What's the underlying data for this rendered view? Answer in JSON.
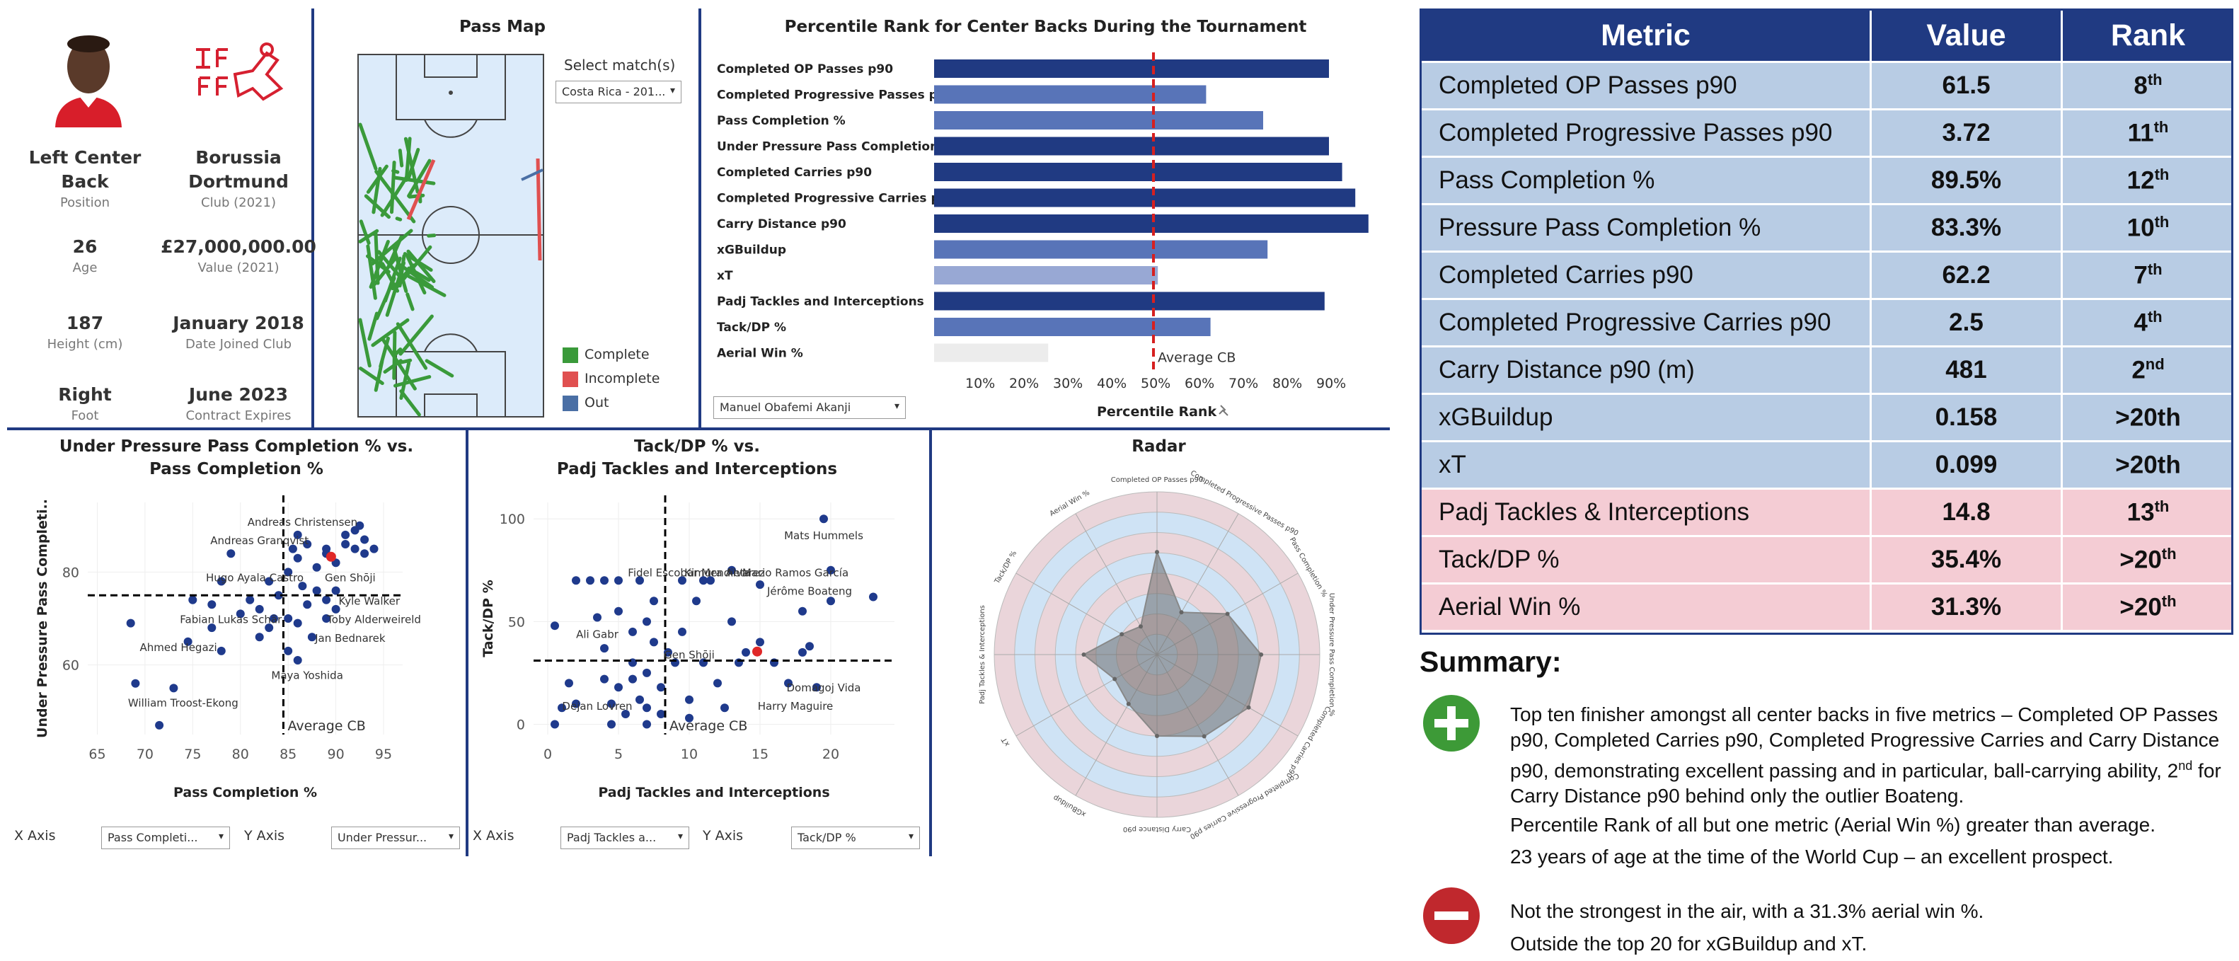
{
  "profile": {
    "position": {
      "value": "Left Center Back",
      "label": "Position"
    },
    "club": {
      "value": "Borussia Dortmund",
      "label": "Club (2021)"
    },
    "age": {
      "value": "26",
      "label": "Age"
    },
    "value": {
      "value": "£27,000,000.00",
      "label": "Value (2021)"
    },
    "height": {
      "value": "187",
      "label": "Height (cm)"
    },
    "joined": {
      "value": "January 2018",
      "label": "Date Joined Club"
    },
    "foot": {
      "value": "Right",
      "label": "Foot"
    },
    "contract": {
      "value": "June 2023",
      "label": "Contract Expires"
    }
  },
  "pass_map": {
    "title": "Pass Map",
    "select_label": "Select match(s)",
    "select_value": "Costa Rica - 201...",
    "legend": [
      {
        "label": "Complete",
        "color": "#3a9a3a"
      },
      {
        "label": "Incomplete",
        "color": "#e05050"
      },
      {
        "label": "Out",
        "color": "#4a6fa5"
      }
    ]
  },
  "percentile": {
    "title": "Percentile Rank for Center Backs During the Tournament",
    "player_select": "Manuel Obafemi Akanji",
    "xlabel": "Percentile Rank",
    "avg_label": "Average CB",
    "ticks": [
      "10%",
      "20%",
      "30%",
      "40%",
      "50%",
      "60%",
      "70%",
      "80%",
      "90%"
    ],
    "avg_value": 50,
    "bar_colors": {
      "dark": "#203a82",
      "mid": "#5874b8",
      "light": "#98a8d4",
      "empty": "#ececec"
    },
    "chart_data": {
      "type": "bar",
      "title": "Percentile Rank for Center Backs During the Tournament",
      "xlabel": "Percentile Rank",
      "categories": [
        "Completed OP Passes p90",
        "Completed Progressive Passes p90",
        "Pass Completion %",
        "Under Pressure Pass Completion %",
        "Completed Carries p90",
        "Completed Progressive Carries p90",
        "Carry Distance p90",
        "xGBuildup",
        "xT",
        "Padj Tackles and Interceptions",
        "Tack/DP %",
        "Aerial Win %"
      ],
      "values": [
        90,
        62,
        75,
        90,
        93,
        96,
        99,
        76,
        51,
        89,
        63,
        26
      ],
      "shade": [
        "dark",
        "mid",
        "mid",
        "dark",
        "dark",
        "dark",
        "dark",
        "mid",
        "light",
        "dark",
        "mid",
        "empty"
      ],
      "xlim": [
        0,
        100
      ]
    }
  },
  "scatter1": {
    "title_line1": "Under Pressure Pass Completion % vs.",
    "title_line2": "Pass Completion %",
    "xlabel": "Pass Completion %",
    "ylabel": "Under Pressure Pass Completi..",
    "avg_label": "Average CB",
    "x_axis_label": "X Axis",
    "y_axis_label": "Y Axis",
    "x_select": "Pass Completi...",
    "y_select": "Under Pressur...",
    "xticks": [
      "65",
      "70",
      "75",
      "80",
      "85",
      "90",
      "95"
    ],
    "yticks": [
      "80",
      "60"
    ],
    "chart_data": {
      "type": "scatter",
      "xlim": [
        64,
        97
      ],
      "ylim": [
        45,
        95
      ],
      "avg": {
        "x": 84.5,
        "y": 75
      },
      "highlight": {
        "x": 89.5,
        "y": 83.3
      },
      "labels": [
        {
          "text": "Andreas Christensen",
          "x": 86.5,
          "y": 90
        },
        {
          "text": "Andreas Granqvist",
          "x": 82,
          "y": 86
        },
        {
          "text": "Hugo Ayala Castro",
          "x": 81.5,
          "y": 78
        },
        {
          "text": "Gen Shōji",
          "x": 91.5,
          "y": 78
        },
        {
          "text": "Kyle Walker",
          "x": 93.5,
          "y": 73
        },
        {
          "text": "Fabian Lukas Schär",
          "x": 79,
          "y": 69
        },
        {
          "text": "Toby Alderweireld",
          "x": 94,
          "y": 69
        },
        {
          "text": "Jan Bednarek",
          "x": 91.5,
          "y": 65
        },
        {
          "text": "Ahmed Hegazi",
          "x": 73.5,
          "y": 63
        },
        {
          "text": "Maya Yoshida",
          "x": 87,
          "y": 57
        },
        {
          "text": "William Troost-Ekong",
          "x": 74,
          "y": 51
        }
      ],
      "points": [
        [
          68.5,
          69
        ],
        [
          69,
          56
        ],
        [
          71.5,
          47
        ],
        [
          73,
          55
        ],
        [
          74.5,
          65
        ],
        [
          75,
          74
        ],
        [
          77,
          73
        ],
        [
          77,
          68
        ],
        [
          78,
          63
        ],
        [
          78,
          78
        ],
        [
          79,
          84
        ],
        [
          80,
          71
        ],
        [
          81,
          74
        ],
        [
          82,
          72
        ],
        [
          82,
          66
        ],
        [
          83,
          68
        ],
        [
          83,
          78
        ],
        [
          83.5,
          70
        ],
        [
          84,
          75
        ],
        [
          85,
          63
        ],
        [
          85,
          70
        ],
        [
          85,
          80
        ],
        [
          85.5,
          85
        ],
        [
          86,
          88
        ],
        [
          86,
          83
        ],
        [
          86,
          69
        ],
        [
          86,
          61
        ],
        [
          86.5,
          77
        ],
        [
          87,
          86
        ],
        [
          87,
          73
        ],
        [
          87.5,
          66
        ],
        [
          88,
          76
        ],
        [
          88,
          81
        ],
        [
          89,
          84
        ],
        [
          89,
          70
        ],
        [
          89,
          74
        ],
        [
          90,
          82
        ],
        [
          90,
          76
        ],
        [
          90,
          72
        ],
        [
          91,
          86
        ],
        [
          91,
          88
        ],
        [
          92,
          85
        ],
        [
          92,
          89
        ],
        [
          92.5,
          90
        ],
        [
          93,
          87
        ],
        [
          93,
          84
        ],
        [
          94,
          85
        ],
        [
          89,
          85
        ]
      ]
    }
  },
  "scatter2": {
    "title_line1": "Tack/DP % vs.",
    "title_line2": "Padj Tackles and Interceptions",
    "xlabel": "Padj Tackles and Interceptions",
    "ylabel": "Tack/DP %",
    "avg_label": "Average CB",
    "x_axis_label": "X Axis",
    "y_axis_label": "Y Axis",
    "x_select": "Padj Tackles a...",
    "y_select": "Tack/DP %",
    "xticks": [
      "0",
      "5",
      "10",
      "15",
      "20"
    ],
    "yticks": [
      "100",
      "50",
      "0"
    ],
    "chart_data": {
      "type": "scatter",
      "xlim": [
        -1,
        24.5
      ],
      "ylim": [
        -5,
        108
      ],
      "avg": {
        "x": 8.3,
        "y": 31
      },
      "highlight": {
        "x": 14.8,
        "y": 35.4
      },
      "labels": [
        {
          "text": "Mats Hummels",
          "x": 19.5,
          "y": 90
        },
        {
          "text": "Fidel Escobar Mendieta",
          "x": 10,
          "y": 72
        },
        {
          "text": "Mario Ramos García",
          "x": 17.5,
          "y": 72
        },
        {
          "text": "Kimura Alvarez",
          "x": 12.5,
          "y": 72
        },
        {
          "text": "Jérôme Boateng",
          "x": 18.5,
          "y": 63
        },
        {
          "text": "Ali Gabr",
          "x": 3.5,
          "y": 42
        },
        {
          "text": "Gen Shōji",
          "x": 10,
          "y": 32
        },
        {
          "text": "Domagoj Vida",
          "x": 19.5,
          "y": 16
        },
        {
          "text": "Dejan Lovren",
          "x": 3.5,
          "y": 7
        },
        {
          "text": "Harry Maguire",
          "x": 17.5,
          "y": 7
        }
      ],
      "points": [
        [
          0.5,
          48
        ],
        [
          0.5,
          0
        ],
        [
          1,
          8
        ],
        [
          1.5,
          20
        ],
        [
          2,
          10
        ],
        [
          2,
          70
        ],
        [
          3,
          70
        ],
        [
          3.5,
          52
        ],
        [
          4,
          70
        ],
        [
          4,
          37
        ],
        [
          4,
          22
        ],
        [
          4.5,
          10
        ],
        [
          4.5,
          0
        ],
        [
          5,
          55
        ],
        [
          5,
          70
        ],
        [
          5,
          18
        ],
        [
          5.5,
          5
        ],
        [
          6,
          45
        ],
        [
          6,
          30
        ],
        [
          6,
          22
        ],
        [
          6.5,
          70
        ],
        [
          6.5,
          12
        ],
        [
          7,
          50
        ],
        [
          7,
          25
        ],
        [
          7,
          8
        ],
        [
          7,
          0
        ],
        [
          7.5,
          60
        ],
        [
          7.5,
          40
        ],
        [
          8,
          18
        ],
        [
          8,
          5
        ],
        [
          8.5,
          35
        ],
        [
          9,
          30
        ],
        [
          9.5,
          45
        ],
        [
          9.5,
          70
        ],
        [
          10,
          12
        ],
        [
          10,
          3
        ],
        [
          10.5,
          60
        ],
        [
          11,
          30
        ],
        [
          11,
          70
        ],
        [
          11.5,
          70
        ],
        [
          12,
          20
        ],
        [
          12.5,
          8
        ],
        [
          13,
          50
        ],
        [
          13,
          75
        ],
        [
          13.5,
          30
        ],
        [
          14,
          35
        ],
        [
          15,
          68
        ],
        [
          15,
          40
        ],
        [
          16,
          30
        ],
        [
          17,
          20
        ],
        [
          18,
          35
        ],
        [
          18,
          55
        ],
        [
          18.5,
          38
        ],
        [
          19,
          18
        ],
        [
          19.5,
          100
        ],
        [
          20,
          75
        ],
        [
          20,
          60
        ],
        [
          23,
          62
        ]
      ]
    }
  },
  "radar": {
    "title": "Radar",
    "spokes": [
      "Completed OP Passes p90",
      "Completed Progressive Passes p90",
      "Pass Completion %",
      "Under Pressure Pass Completion %",
      "Completed Carries p90",
      "Completed Progressive Carries p90",
      "Carry Distance p90",
      "xGBuildup",
      "xT",
      "Padj Tackles & Interceptions",
      "Tack/DP %",
      "Aerial Win %"
    ],
    "chart_data": {
      "type": "radar",
      "series": [
        {
          "values": [
            0.63,
            0.3,
            0.5,
            0.64,
            0.65,
            0.58,
            0.5,
            0.35,
            0.3,
            0.45,
            0.25,
            0.2
          ]
        }
      ]
    }
  },
  "metrics_table": {
    "headers": [
      "Metric",
      "Value",
      "Rank"
    ],
    "rows": [
      {
        "metric": "Completed OP Passes p90",
        "value": "61.5",
        "rank": "8",
        "suffix": "th",
        "group": "blue"
      },
      {
        "metric": "Completed Progressive Passes p90",
        "value": "3.72",
        "rank": "11",
        "suffix": "th",
        "group": "blue"
      },
      {
        "metric": "Pass Completion %",
        "value": "89.5%",
        "rank": "12",
        "suffix": "th",
        "group": "blue"
      },
      {
        "metric": "Pressure Pass Completion %",
        "value": "83.3%",
        "rank": "10",
        "suffix": "th",
        "group": "blue"
      },
      {
        "metric": "Completed Carries p90",
        "value": "62.2",
        "rank": "7",
        "suffix": "th",
        "group": "blue"
      },
      {
        "metric": "Completed Progressive Carries p90",
        "value": "2.5",
        "rank": "4",
        "suffix": "th",
        "group": "blue"
      },
      {
        "metric": "Carry Distance p90 (m)",
        "value": "481",
        "rank": "2",
        "suffix": "nd",
        "group": "blue"
      },
      {
        "metric": "xGBuildup",
        "value": "0.158",
        "rank": ">20th",
        "suffix": "",
        "group": "blue"
      },
      {
        "metric": "xT",
        "value": "0.099",
        "rank": ">20th",
        "suffix": "",
        "group": "blue"
      },
      {
        "metric": "Padj Tackles & Interceptions",
        "value": "14.8",
        "rank": "13",
        "suffix": "th",
        "group": "pink"
      },
      {
        "metric": "Tack/DP %",
        "value": "35.4%",
        "rank": ">20",
        "suffix": "th",
        "group": "pink"
      },
      {
        "metric": "Aerial Win %",
        "value": "31.3%",
        "rank": ">20",
        "suffix": "th",
        "group": "pink"
      }
    ]
  },
  "summary": {
    "title": "Summary:",
    "plus_1": "Top ten finisher amongst all center backs in five metrics – Completed OP Passes p90, Completed Carries p90, Completed Progressive Carries and Carry Distance p90, demonstrating excellent passing and in particular, ball-carrying ability, 2",
    "plus_1_sup": "nd",
    "plus_1_end": " for Carry Distance p90 behind only the outlier Boateng.",
    "plus_2": "Percentile Rank of all but one metric (Aerial Win %) greater than average.",
    "plus_3": "23 years of age at the time of the World Cup – an excellent prospect.",
    "minus_1": "Not the strongest in the air, with a 31.3% aerial win %.",
    "minus_2": "Outside the top 20 for xGBuildup and xT.",
    "plus_color": "#3d9a37",
    "minus_color": "#c0282d"
  }
}
